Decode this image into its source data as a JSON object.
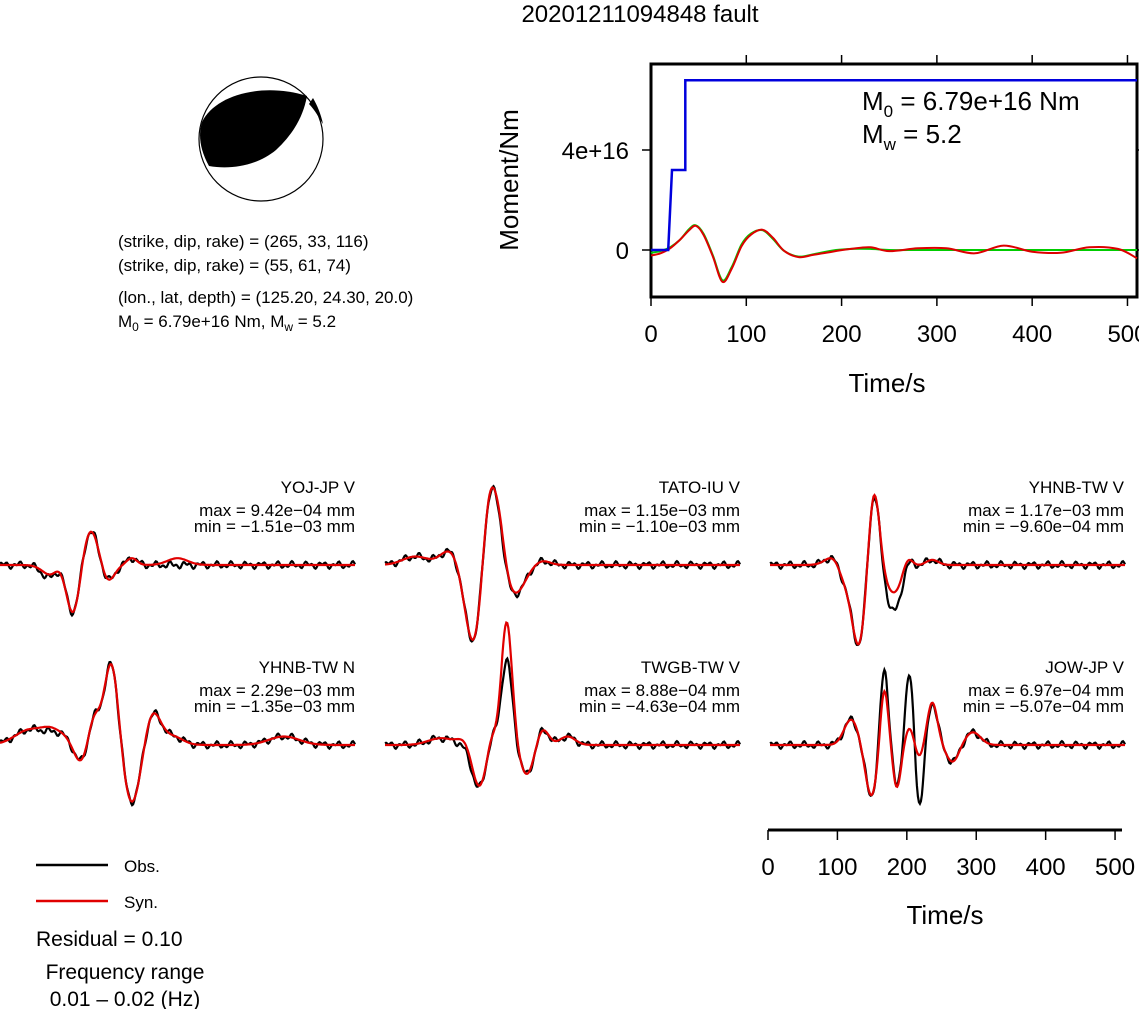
{
  "title": "20201211094848 fault",
  "mechanism": {
    "nodal_planes": [
      {
        "label": "(strike, dip, rake) = (265, 33, 116)"
      },
      {
        "label": "(strike, dip, rake) = (55, 61, 74)"
      }
    ],
    "location_label": "(lon., lat, depth) = (125.20, 24.30, 20.0)",
    "m0_prefix": "M",
    "m0_sub": "0",
    "m0_rest": " = 6.79e+16 Nm, M",
    "mw_sub": "w",
    "mw_rest": " = 5.2"
  },
  "legend": {
    "obs": "Obs.",
    "syn": "Syn.",
    "obs_color": "#000000",
    "syn_color": "#e00000"
  },
  "residual_label": "Residual = 0.10",
  "freq_title": "Frequency range",
  "freq_value": "0.01 – 0.02 (Hz)",
  "colors": {
    "moment_curve": "#0000dd",
    "stf_obs": "#00cc00",
    "stf_syn": "#dd0000"
  },
  "chart_data": [
    {
      "type": "line",
      "name": "moment",
      "xlabel": "Time/s",
      "ylabel": "Moment/Nm",
      "xlim": [
        0,
        510
      ],
      "x_ticks": [
        "0",
        "100",
        "200",
        "300",
        "400",
        "500"
      ],
      "y_ticks": [
        "0",
        "4e+16"
      ],
      "annotation_m0_prefix": "M",
      "annotation_m0_sub": "0",
      "annotation_m0_rest": " = 6.79e+16 Nm",
      "annotation_mw_prefix": "M",
      "annotation_mw_sub": "w",
      "annotation_mw_rest": " = 5.2",
      "cumulative_moment": {
        "x": [
          0,
          18,
          22,
          22,
          30,
          30,
          36,
          36,
          510
        ],
        "y": [
          0,
          0,
          3.2e+16,
          3.2e+16,
          3.2e+16,
          3.2e+16,
          3.2e+16,
          6.79e+16,
          6.79e+16
        ]
      },
      "source_time_function": {
        "x": [
          0,
          10,
          20,
          30,
          40,
          47,
          55,
          65,
          75,
          85,
          95,
          105,
          117,
          128,
          140,
          155,
          170,
          190,
          210,
          230,
          250,
          280,
          310,
          340,
          370,
          400,
          430,
          460,
          490,
          510
        ],
        "obs": [
          -0.05,
          -0.02,
          0.05,
          0.18,
          0.38,
          0.45,
          0.3,
          -0.1,
          -0.55,
          -0.3,
          0.1,
          0.3,
          0.36,
          0.2,
          -0.02,
          -0.12,
          -0.08,
          -0.01,
          0.02,
          0.02,
          0.0,
          0.0,
          0.0,
          0.0,
          0.0,
          0.0,
          0.0,
          0.0,
          0.0,
          0.0
        ],
        "syn": [
          -0.1,
          -0.06,
          0.03,
          0.18,
          0.36,
          0.44,
          0.28,
          -0.12,
          -0.58,
          -0.33,
          0.07,
          0.28,
          0.37,
          0.22,
          -0.02,
          -0.13,
          -0.09,
          -0.03,
          0.02,
          0.05,
          -0.02,
          0.03,
          0.03,
          -0.06,
          0.08,
          -0.03,
          -0.05,
          0.05,
          0.02,
          -0.15
        ]
      }
    },
    {
      "type": "line",
      "name": "waveforms",
      "xlabel": "Time/s",
      "xlim": [
        0,
        510
      ],
      "x_ticks": [
        "0",
        "100",
        "200",
        "300",
        "400",
        "500"
      ],
      "stations": [
        {
          "label": "YOJ-JP V",
          "max": "max = 9.42e−04 mm",
          "min": "min = −1.51e−03 mm",
          "pulses": [
            [
              100,
              4,
              -0.18,
              16
            ],
            [
              125,
              5,
              0.18,
              15
            ],
            [
              145,
              5,
              -0.95,
              16
            ],
            [
              170,
              5,
              0.55,
              25
            ],
            [
              210,
              5,
              -0.3,
              14
            ],
            [
              260,
              5,
              0.08,
              10
            ]
          ],
          "synAdj": [
            [
              92,
              0.04,
              12
            ],
            [
              350,
              0.08,
              20
            ]
          ]
        },
        {
          "label": "TATO-IU V",
          "max": "max = 1.15e−03 mm",
          "min": "min = −1.10e−03 mm",
          "pulses": [
            [
              60,
              5,
              0.1,
              25
            ],
            [
              130,
              5,
              0.18,
              20
            ],
            [
              175,
              5,
              -0.95,
              18
            ],
            [
              205,
              5,
              0.95,
              13
            ],
            [
              225,
              5,
              0.45,
              11
            ],
            [
              255,
              5,
              -0.35,
              20
            ],
            [
              310,
              5,
              0.05,
              15
            ]
          ],
          "synAdj": [
            [
              235,
              0.05,
              15
            ]
          ]
        },
        {
          "label": "YHNB-TW V",
          "max": "max = 1.17e−03 mm",
          "min": "min = −9.60e−04 mm",
          "pulses": [
            [
              130,
              5,
              0.12,
              18
            ],
            [
              145,
              5,
              -0.2,
              12
            ],
            [
              175,
              5,
              -0.95,
              14
            ],
            [
              205,
              5,
              0.95,
              11
            ],
            [
              245,
              5,
              -0.55,
              18
            ],
            [
              270,
              5,
              0.18,
              10
            ],
            [
              320,
              5,
              0.06,
              12
            ]
          ],
          "synAdj": [
            [
              245,
              0.22,
              16
            ]
          ]
        },
        {
          "label": "YHNB-TW N",
          "max": "max = 2.29e−03 mm",
          "min": "min = −1.35e−03 mm",
          "pulses": [
            [
              60,
              5,
              0.18,
              30
            ],
            [
              120,
              5,
              0.12,
              25
            ],
            [
              160,
              5,
              -0.25,
              15
            ],
            [
              185,
              5,
              0.35,
              12
            ],
            [
              220,
              5,
              1.0,
              14
            ],
            [
              260,
              5,
              -0.7,
              18
            ],
            [
              300,
              5,
              0.4,
              16
            ],
            [
              340,
              5,
              0.1,
              20
            ],
            [
              560,
              5,
              0.1,
              30
            ]
          ],
          "synAdj": [
            [
              96,
              0.05,
              15
            ]
          ]
        },
        {
          "label": "TWGB-TW V",
          "max": "max = 8.88e−04 mm",
          "min": "min = −4.63e−04 mm",
          "pulses": [
            [
              110,
              5,
              0.08,
              25
            ],
            [
              185,
              5,
              -0.5,
              14
            ],
            [
              210,
              5,
              0.15,
              8
            ],
            [
              240,
              5,
              1.0,
              11
            ],
            [
              280,
              5,
              -0.35,
              14
            ],
            [
              310,
              5,
              0.2,
              12
            ],
            [
              360,
              5,
              0.1,
              15
            ]
          ],
          "synAdj": [
            [
              240,
              0.45,
              10
            ],
            [
              160,
              0.08,
              15
            ]
          ]
        },
        {
          "label": "JOW-JP V",
          "max": "max = 6.97e−04 mm",
          "min": "min = −5.07e−04 mm",
          "pulses": [
            [
              160,
              5,
              0.3,
              14
            ],
            [
              200,
              5,
              -0.6,
              12
            ],
            [
              225,
              5,
              0.95,
              8
            ],
            [
              250,
              5,
              -0.5,
              8
            ],
            [
              275,
              5,
              0.85,
              8
            ],
            [
              295,
              5,
              -0.75,
              8
            ],
            [
              320,
              5,
              0.5,
              10
            ],
            [
              360,
              5,
              -0.2,
              12
            ],
            [
              400,
              5,
              0.15,
              15
            ]
          ],
          "synAdj": [
            [
              225,
              -0.25,
              8
            ],
            [
              275,
              -0.65,
              8
            ],
            [
              295,
              0.6,
              8
            ]
          ]
        }
      ]
    }
  ]
}
